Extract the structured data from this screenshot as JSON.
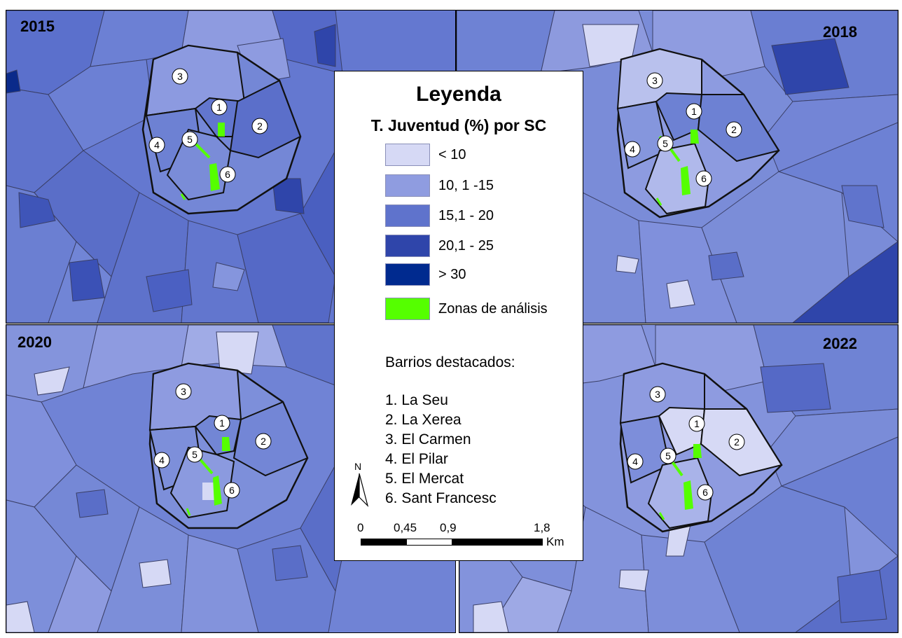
{
  "panels": [
    {
      "year": "2015"
    },
    {
      "year": "2018"
    },
    {
      "year": "2020"
    },
    {
      "year": "2022"
    }
  ],
  "legend": {
    "title": "Leyenda",
    "subtitle": "T. Juventud (%) por SC",
    "classes": [
      {
        "label": "< 10",
        "color": "#d6d9f5"
      },
      {
        "label": "10, 1 -15",
        "color": "#8f9ce0"
      },
      {
        "label": "15,1 - 20",
        "color": "#5f73cc"
      },
      {
        "label": "20,1 - 25",
        "color": "#2f45aa"
      },
      {
        "label": "> 30",
        "color": "#002a8f"
      },
      {
        "label": "Zonas de análisis",
        "color": "#55ff00"
      }
    ],
    "barrios_title": "Barrios destacados:",
    "barrios": [
      "1. La Seu",
      "2. La Xerea",
      "3. El Carmen",
      "4. El Pilar",
      "5. El Mercat",
      "6. Sant Francesc"
    ],
    "scale": {
      "labels": [
        "0",
        "0,45",
        "0,9",
        "1,8"
      ],
      "unit": "Km"
    },
    "north": "N"
  },
  "districts": [
    "1",
    "2",
    "3",
    "4",
    "5",
    "6"
  ]
}
